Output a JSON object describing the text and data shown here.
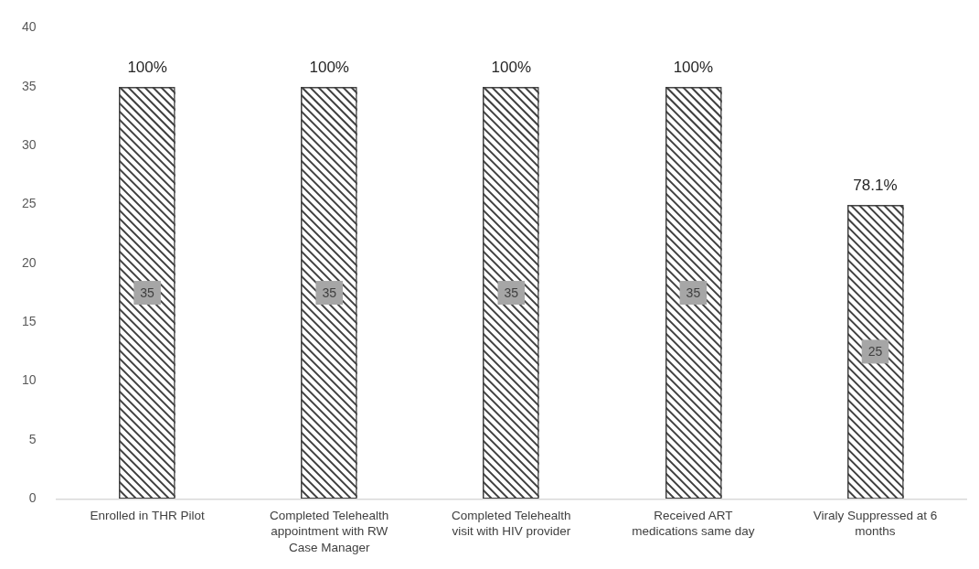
{
  "chart_data": {
    "type": "bar",
    "categories": [
      "Enrolled in THR Pilot",
      "Completed Telehealth appointment with RW Case Manager",
      "Completed Telehealth visit with HIV provider",
      "Received ART medications same day",
      "Viraly Suppressed at 6 months"
    ],
    "values": [
      35,
      35,
      35,
      35,
      25
    ],
    "color": "#404040",
    "ylim": [
      0,
      40
    ],
    "yticks": [
      0,
      5,
      10,
      15,
      20,
      25,
      30,
      35,
      40
    ],
    "data_labels": true,
    "annotations": [
      {
        "text": "100%",
        "x": "Enrolled in THR Pilot",
        "y": 35
      },
      {
        "text": "100%",
        "x": "Completed Telehealth appointment with RW Case Manager",
        "y": 35
      },
      {
        "text": "100%",
        "x": "Completed Telehealth visit with HIV provider",
        "y": 35
      },
      {
        "text": "100%",
        "x": "Received ART medications same day",
        "y": 35
      },
      {
        "text": "78.1%",
        "x": "Viraly Suppressed at 6 months",
        "y": 25
      }
    ]
  }
}
